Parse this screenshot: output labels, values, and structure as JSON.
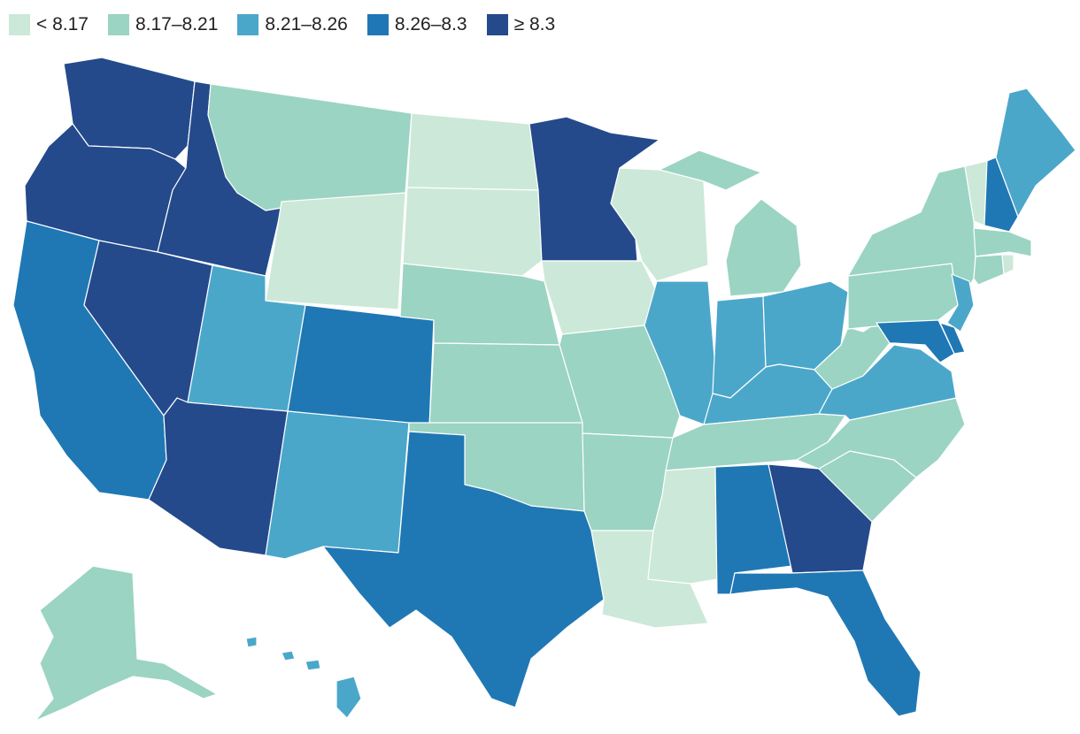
{
  "legend": [
    {
      "label": "< 8.17",
      "color": "#cce8d8"
    },
    {
      "label": "8.17–8.21",
      "color": "#9bd4c2"
    },
    {
      "label": "8.21–8.26",
      "color": "#4ba7ca"
    },
    {
      "label": "8.26–8.3",
      "color": "#1f78b4"
    },
    {
      "label": "≥ 8.3",
      "color": "#244a8c"
    }
  ],
  "states": [
    {
      "name": "Washington",
      "bin": 4
    },
    {
      "name": "Oregon",
      "bin": 4
    },
    {
      "name": "Idaho",
      "bin": 4
    },
    {
      "name": "Nevada",
      "bin": 4
    },
    {
      "name": "Arizona",
      "bin": 4
    },
    {
      "name": "Minnesota",
      "bin": 4
    },
    {
      "name": "Georgia",
      "bin": 4
    },
    {
      "name": "California",
      "bin": 3
    },
    {
      "name": "Colorado",
      "bin": 3
    },
    {
      "name": "Texas",
      "bin": 3
    },
    {
      "name": "Alabama",
      "bin": 3
    },
    {
      "name": "Florida",
      "bin": 3
    },
    {
      "name": "New Hampshire",
      "bin": 3
    },
    {
      "name": "Maryland",
      "bin": 3
    },
    {
      "name": "Delaware",
      "bin": 3
    },
    {
      "name": "Utah",
      "bin": 2
    },
    {
      "name": "New Mexico",
      "bin": 2
    },
    {
      "name": "Illinois",
      "bin": 2
    },
    {
      "name": "Indiana",
      "bin": 2
    },
    {
      "name": "Ohio",
      "bin": 2
    },
    {
      "name": "Kentucky",
      "bin": 2
    },
    {
      "name": "Virginia",
      "bin": 2
    },
    {
      "name": "New Jersey",
      "bin": 2
    },
    {
      "name": "Maine",
      "bin": 2
    },
    {
      "name": "Hawaii",
      "bin": 2
    },
    {
      "name": "Montana",
      "bin": 1
    },
    {
      "name": "Nebraska",
      "bin": 1
    },
    {
      "name": "Kansas",
      "bin": 1
    },
    {
      "name": "Oklahoma",
      "bin": 1
    },
    {
      "name": "Missouri",
      "bin": 1
    },
    {
      "name": "Arkansas",
      "bin": 1
    },
    {
      "name": "Tennessee",
      "bin": 1
    },
    {
      "name": "North Carolina",
      "bin": 1
    },
    {
      "name": "South Carolina",
      "bin": 1
    },
    {
      "name": "West Virginia",
      "bin": 1
    },
    {
      "name": "Pennsylvania",
      "bin": 1
    },
    {
      "name": "New York",
      "bin": 1
    },
    {
      "name": "Michigan",
      "bin": 1
    },
    {
      "name": "Massachusetts",
      "bin": 1
    },
    {
      "name": "Connecticut",
      "bin": 1
    },
    {
      "name": "Alaska",
      "bin": 1
    },
    {
      "name": "North Dakota",
      "bin": 0
    },
    {
      "name": "South Dakota",
      "bin": 0
    },
    {
      "name": "Wyoming",
      "bin": 0
    },
    {
      "name": "Iowa",
      "bin": 0
    },
    {
      "name": "Wisconsin",
      "bin": 0
    },
    {
      "name": "Louisiana",
      "bin": 0
    },
    {
      "name": "Mississippi",
      "bin": 0
    },
    {
      "name": "Vermont",
      "bin": 0
    },
    {
      "name": "Rhode Island",
      "bin": 0
    }
  ]
}
